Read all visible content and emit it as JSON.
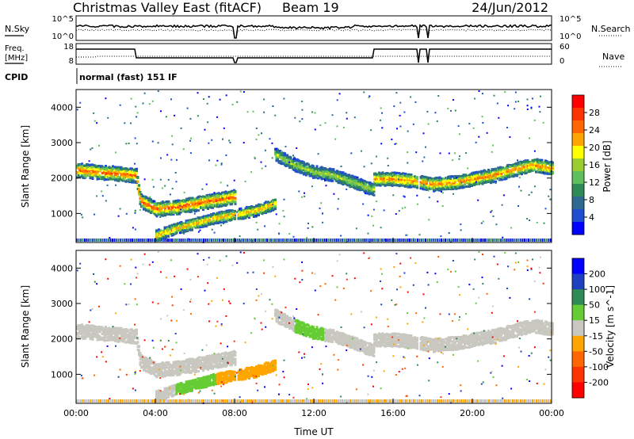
{
  "header": {
    "title": "Christmas Valley East (fitACF)",
    "beam": "Beam 19",
    "date": "24/Jun/2012"
  },
  "summary": {
    "nsky_label": "N.Sky",
    "nsky_ticks": [
      "10^5",
      "10^0"
    ],
    "nsearch_label": "N.Search",
    "freq_label_1": "Freq.",
    "freq_label_2": "[MHz]",
    "freq_ticks": [
      "18",
      "8"
    ],
    "nave_ticks": [
      "60",
      "0"
    ],
    "nave_label": "Nave",
    "cpid_label": "CPID",
    "cpid_text": "normal (fast) 151 IF"
  },
  "colors": {
    "power": [
      "#0000ff",
      "#1e4fd0",
      "#2e6a8f",
      "#2e8b57",
      "#5fbf5f",
      "#9acd32",
      "#ffff00",
      "#ffa500",
      "#ff6600",
      "#ff3300",
      "#ff0000"
    ],
    "velocity": [
      "#0000ff",
      "#1e3fbf",
      "#2e8b57",
      "#66cc33",
      "#c8c8c0",
      "#ffa500",
      "#ff6600",
      "#ff3300",
      "#ff0000"
    ],
    "ground": "#bebebe"
  },
  "chart_data": [
    {
      "type": "heatmap",
      "name": "power",
      "xlabel": "",
      "ylabel": "Slant Range [km]",
      "ylim": [
        180,
        4500
      ],
      "yticks": [
        "1000",
        "2000",
        "3000",
        "4000"
      ],
      "colorbar_label": "Power [dB]",
      "colorbar_ticks": [
        "4",
        "8",
        "12",
        "16",
        "20",
        "24",
        "28"
      ],
      "colorbar_range": [
        0,
        30
      ],
      "echo_bands": [
        {
          "t": [
            0,
            1,
            2,
            3,
            3.2,
            4,
            5,
            6,
            7,
            8
          ],
          "range": [
            2250,
            2200,
            2150,
            2100,
            1400,
            1150,
            1200,
            1300,
            1400,
            1500
          ],
          "width": 180,
          "peak_db": 26
        },
        {
          "t": [
            4,
            5,
            6,
            7,
            8,
            9,
            10
          ],
          "range": [
            400,
            600,
            750,
            900,
            1000,
            1100,
            1300
          ],
          "width": 140,
          "peak_db": 22
        },
        {
          "t": [
            10,
            11,
            12,
            13,
            14,
            15
          ],
          "range": [
            2700,
            2400,
            2200,
            2100,
            1900,
            1700
          ],
          "width": 160,
          "peak_db": 16
        },
        {
          "t": [
            15,
            16,
            17,
            18,
            19,
            20,
            21,
            22,
            23,
            24
          ],
          "range": [
            2000,
            2000,
            1950,
            1850,
            1900,
            2000,
            2100,
            2250,
            2400,
            2300
          ],
          "width": 170,
          "peak_db": 24
        }
      ]
    },
    {
      "type": "heatmap",
      "name": "velocity",
      "xlabel": "Time UT",
      "ylabel": "Slant Range [km]",
      "ylim": [
        180,
        4500
      ],
      "yticks": [
        "1000",
        "2000",
        "3000",
        "4000"
      ],
      "xticks": [
        "00:00",
        "04:00",
        "08:00",
        "12:00",
        "16:00",
        "20:00",
        "00:00"
      ],
      "xlim": [
        0,
        24
      ],
      "colorbar_label": "Velocity [m s^-1]",
      "colorbar_ticks": [
        "200",
        "100",
        "50",
        "15",
        "-15",
        "-50",
        "-100",
        "-200"
      ]
    }
  ]
}
